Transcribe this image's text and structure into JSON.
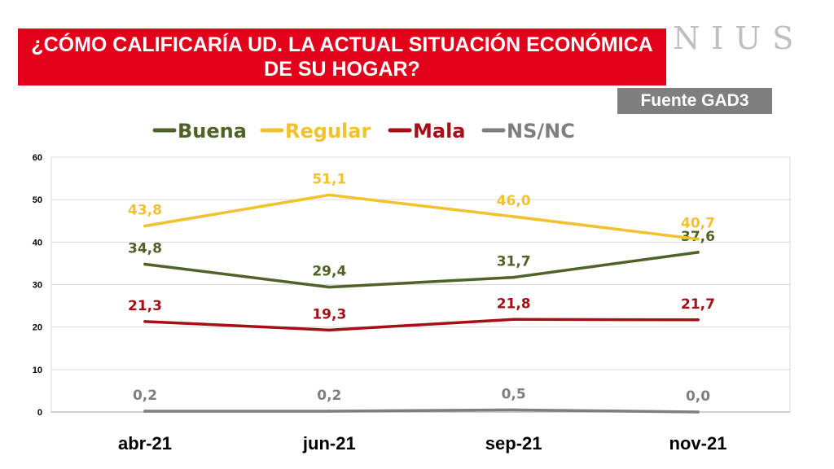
{
  "header": {
    "title_line1": "¿CÓMO CALIFICARÍA UD. LA ACTUAL SITUACIÓN ECONÓMICA",
    "title_line2": "DE SU HOGAR?",
    "brand": "NIUS",
    "source": "Fuente GAD3"
  },
  "chart_data": {
    "type": "line",
    "title": "¿CÓMO CALIFICARÍA UD. LA ACTUAL SITUACIÓN ECONÓMICA DE SU HOGAR?",
    "categories": [
      "abr-21",
      "jun-21",
      "sep-21",
      "nov-21"
    ],
    "series": [
      {
        "name": "Buena",
        "color": "#4f6228",
        "values": [
          34.8,
          29.4,
          31.7,
          37.6
        ],
        "labels": [
          "34,8",
          "29,4",
          "31,7",
          "37,6"
        ]
      },
      {
        "name": "Regular",
        "color": "#f2c12e",
        "values": [
          43.8,
          51.1,
          46.0,
          40.7
        ],
        "labels": [
          "43,8",
          "51,1",
          "46,0",
          "40,7"
        ]
      },
      {
        "name": "Mala",
        "color": "#a50f15",
        "values": [
          21.3,
          19.3,
          21.8,
          21.7
        ],
        "labels": [
          "21,3",
          "19,3",
          "21,8",
          "21,7"
        ]
      },
      {
        "name": "NS/NC",
        "color": "#7f7f7f",
        "values": [
          0.2,
          0.2,
          0.5,
          0.0
        ],
        "labels": [
          "0,2",
          "0,2",
          "0,5",
          "0,0"
        ]
      }
    ],
    "ylim": [
      0,
      60
    ],
    "yticks": [
      0,
      10,
      20,
      30,
      40,
      50,
      60
    ],
    "grid": true,
    "legend": "top"
  }
}
